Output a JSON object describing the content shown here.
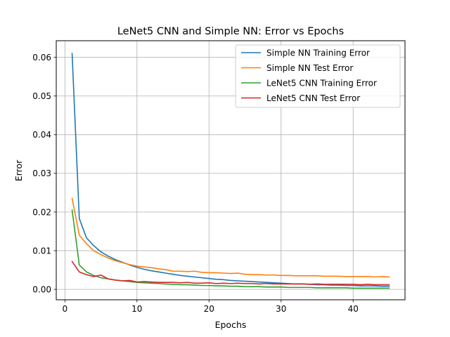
{
  "chart_data": {
    "type": "line",
    "title": "LeNet5 CNN and Simple NN: Error vs Epochs",
    "xlabel": "Epochs",
    "ylabel": "Error",
    "xlim": [
      -1.2,
      47.2
    ],
    "ylim": [
      -0.0027,
      0.0643
    ],
    "xticks": [
      0,
      10,
      20,
      30,
      40
    ],
    "yticks": [
      0.0,
      0.01,
      0.02,
      0.03,
      0.04,
      0.05,
      0.06
    ],
    "ytick_labels": [
      "0.00",
      "0.01",
      "0.02",
      "0.03",
      "0.04",
      "0.05",
      "0.06"
    ],
    "grid": true,
    "legend": "top-right",
    "x": [
      1,
      2,
      3,
      4,
      5,
      6,
      7,
      8,
      9,
      10,
      11,
      12,
      13,
      14,
      15,
      16,
      17,
      18,
      19,
      20,
      21,
      22,
      23,
      24,
      25,
      26,
      27,
      28,
      29,
      30,
      31,
      32,
      33,
      34,
      35,
      36,
      37,
      38,
      39,
      40,
      41,
      42,
      43,
      44,
      45
    ],
    "series": [
      {
        "name": "Simple NN Training Error",
        "color": "#1f77b4",
        "values": [
          0.061,
          0.0183,
          0.0133,
          0.0113,
          0.0097,
          0.0086,
          0.0077,
          0.007,
          0.0063,
          0.0057,
          0.0052,
          0.0048,
          0.0045,
          0.0042,
          0.0039,
          0.0036,
          0.0034,
          0.0032,
          0.003,
          0.0028,
          0.0026,
          0.0025,
          0.0023,
          0.0022,
          0.0021,
          0.002,
          0.0019,
          0.0018,
          0.0017,
          0.0016,
          0.0015,
          0.0014,
          0.0014,
          0.0013,
          0.0012,
          0.0012,
          0.0011,
          0.0011,
          0.001,
          0.001,
          0.0009,
          0.0009,
          0.0009,
          0.0008,
          0.0008
        ]
      },
      {
        "name": "Simple NN Test Error",
        "color": "#ff7f0e",
        "values": [
          0.0235,
          0.014,
          0.0118,
          0.01,
          0.009,
          0.0081,
          0.0074,
          0.0069,
          0.0064,
          0.006,
          0.0058,
          0.0056,
          0.0053,
          0.0051,
          0.0047,
          0.0047,
          0.0046,
          0.0047,
          0.0044,
          0.0043,
          0.0043,
          0.0042,
          0.0041,
          0.0042,
          0.0039,
          0.0038,
          0.0038,
          0.0037,
          0.0037,
          0.0036,
          0.0036,
          0.0035,
          0.0035,
          0.0035,
          0.0035,
          0.0034,
          0.0034,
          0.0034,
          0.0033,
          0.0033,
          0.0033,
          0.0033,
          0.0032,
          0.0033,
          0.0032
        ]
      },
      {
        "name": "LeNet5 CNN Training Error",
        "color": "#2ca02c",
        "values": [
          0.0205,
          0.0063,
          0.0045,
          0.0036,
          0.003,
          0.0027,
          0.0024,
          0.0022,
          0.002,
          0.0018,
          0.0017,
          0.0016,
          0.0015,
          0.0014,
          0.0013,
          0.0012,
          0.0012,
          0.0011,
          0.001,
          0.001,
          0.0009,
          0.0009,
          0.0008,
          0.0008,
          0.0007,
          0.0007,
          0.0007,
          0.0006,
          0.0006,
          0.0006,
          0.0005,
          0.0005,
          0.0005,
          0.0005,
          0.0004,
          0.0004,
          0.0004,
          0.0004,
          0.0004,
          0.0003,
          0.0003,
          0.0003,
          0.0003,
          0.0003,
          0.0003
        ]
      },
      {
        "name": "LeNet5 CNN Test Error",
        "color": "#d62728",
        "values": [
          0.0072,
          0.0045,
          0.0038,
          0.0033,
          0.0037,
          0.0027,
          0.0024,
          0.0022,
          0.0023,
          0.0019,
          0.002,
          0.0019,
          0.0018,
          0.0018,
          0.0018,
          0.0017,
          0.0018,
          0.0016,
          0.0016,
          0.0017,
          0.0015,
          0.0016,
          0.0015,
          0.0016,
          0.0015,
          0.0015,
          0.0014,
          0.0015,
          0.0014,
          0.0014,
          0.0014,
          0.0014,
          0.0014,
          0.0013,
          0.0014,
          0.0013,
          0.0013,
          0.0013,
          0.0013,
          0.0013,
          0.0012,
          0.0013,
          0.0012,
          0.0012,
          0.0012
        ]
      }
    ]
  }
}
